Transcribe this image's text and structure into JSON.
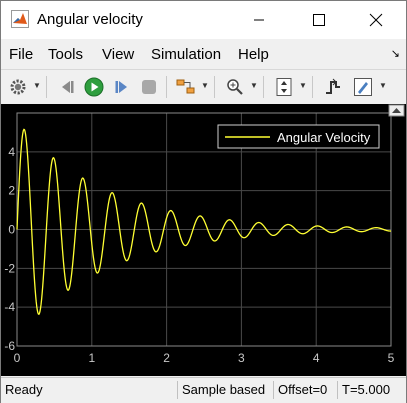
{
  "window": {
    "title": "Angular velocity"
  },
  "menu": [
    "File",
    "Tools",
    "View",
    "Simulation",
    "Help"
  ],
  "status": {
    "state": "Ready",
    "mode": "Sample based",
    "offset": "Offset=0",
    "time": "T=5.000"
  },
  "colors": {
    "plot_background": "#000000",
    "grid": "#4a4a4a",
    "axis_text": "#c8c8c8",
    "signal": "#ffff33"
  },
  "chart_data": {
    "type": "line",
    "title": "",
    "xlabel": "",
    "ylabel": "",
    "xlim": [
      0,
      5
    ],
    "ylim": [
      -6,
      6
    ],
    "x_ticks": [
      0,
      1,
      2,
      3,
      4,
      5
    ],
    "y_ticks": [
      -6,
      -4,
      -2,
      0,
      2,
      4
    ],
    "grid": true,
    "legend_position": "top-right",
    "series": [
      {
        "name": "Angular Velocity",
        "model": "damped sine",
        "amplitude": 5.6,
        "decay_rate": 0.85,
        "frequency_hz": 2.55,
        "x": [
          0,
          0.1,
          0.2,
          0.3,
          0.4,
          0.5,
          0.6,
          0.7,
          0.8,
          0.9,
          1.0,
          1.1,
          1.2,
          1.3,
          1.4,
          1.5,
          1.6,
          1.7,
          1.8,
          1.9,
          2.0,
          2.2,
          2.4,
          2.6,
          2.8,
          3.0,
          3.3,
          3.6,
          4.0,
          4.4,
          4.8,
          5.0
        ],
        "y": [
          0,
          4.3,
          0.5,
          -4.9,
          -1.5,
          3.2,
          3.9,
          -0.4,
          -3.2,
          -1.1,
          2.0,
          2.5,
          -0.3,
          -2.2,
          -0.8,
          1.3,
          1.6,
          -0.2,
          -1.2,
          -0.6,
          0.9,
          -0.8,
          0.6,
          -0.6,
          0.5,
          -0.3,
          0.3,
          -0.2,
          0.2,
          -0.1,
          0.1,
          -0.1
        ]
      }
    ]
  }
}
